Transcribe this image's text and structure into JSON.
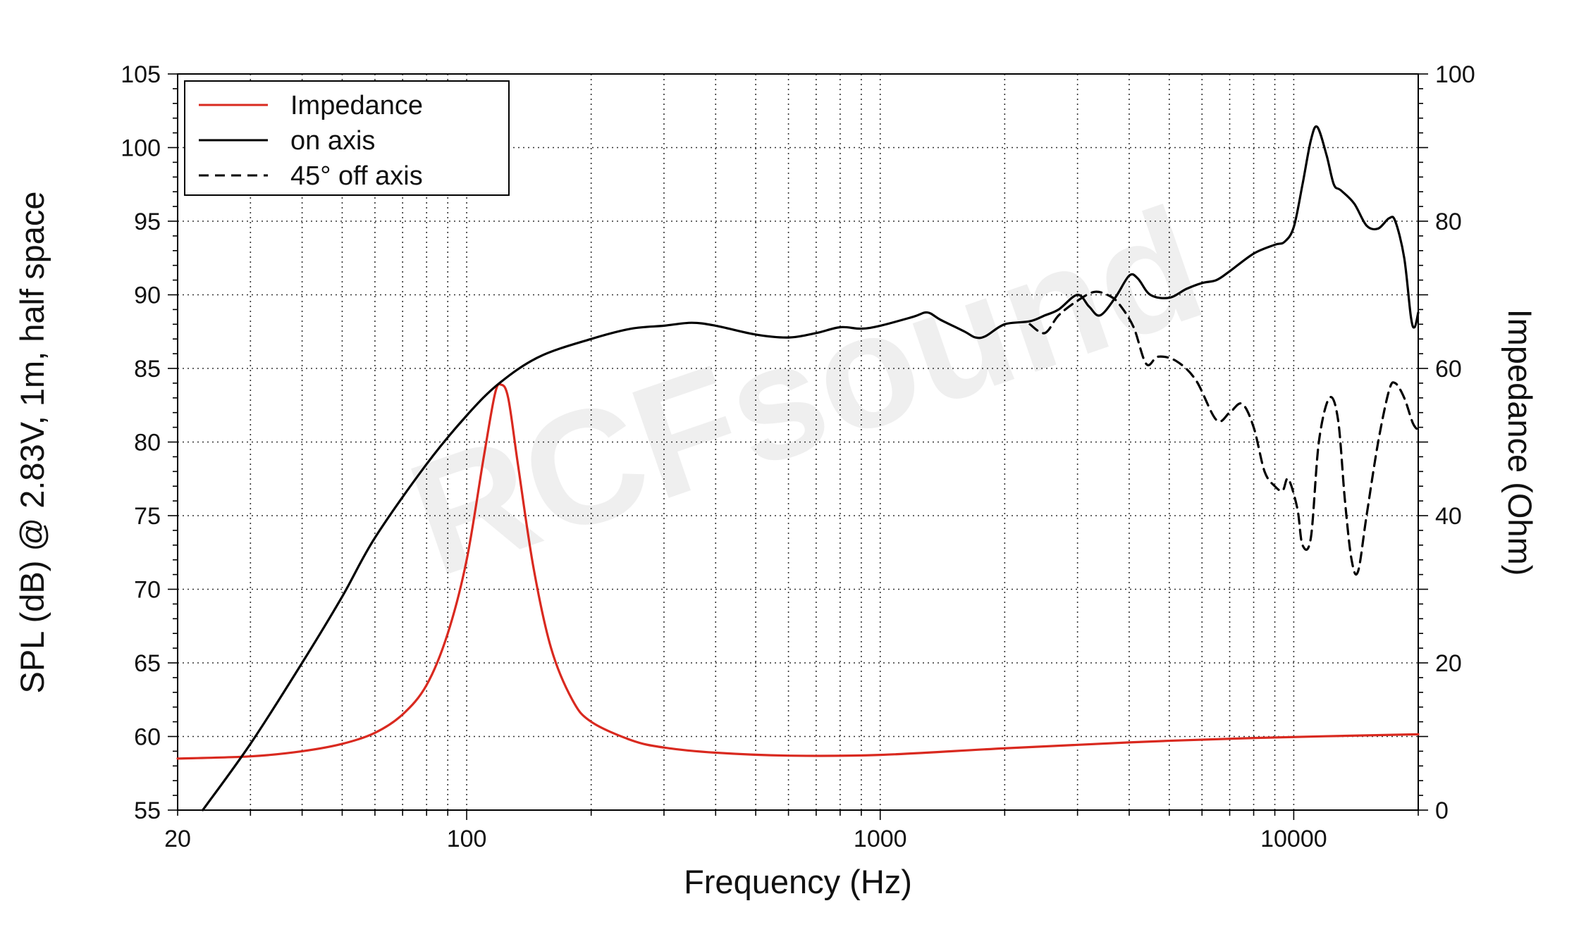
{
  "chart_data": {
    "type": "line",
    "xlabel": "Frequency (Hz)",
    "ylabel": "SPL (dB) @ 2.83V, 1m, half space",
    "y2label": "Impedance (Ohm)",
    "x_scale": "log",
    "xlim": [
      20,
      20000
    ],
    "ylim": [
      55,
      105
    ],
    "y2lim": [
      0,
      100
    ],
    "x_ticks": [
      20,
      100,
      1000,
      10000
    ],
    "x_tick_labels": [
      "20",
      "100",
      "1000",
      "10000"
    ],
    "y_ticks": [
      55,
      60,
      65,
      70,
      75,
      80,
      85,
      90,
      95,
      100,
      105
    ],
    "y_tick_labels": [
      "55",
      "60",
      "65",
      "70",
      "75",
      "80",
      "85",
      "90",
      "95",
      "100",
      "105"
    ],
    "y2_ticks": [
      0,
      20,
      40,
      60,
      80,
      100
    ],
    "y2_tick_labels": [
      "0",
      "20",
      "40",
      "60",
      "80",
      "100"
    ],
    "grid": true,
    "legend_position": "top-left",
    "watermark": "RCFsound",
    "series": [
      {
        "name": "Impedance",
        "color": "#d9291f",
        "dash": "solid",
        "axis": "right",
        "points": [
          [
            20,
            7
          ],
          [
            30,
            7.3
          ],
          [
            40,
            8
          ],
          [
            50,
            9
          ],
          [
            60,
            10.5
          ],
          [
            70,
            13
          ],
          [
            80,
            17
          ],
          [
            90,
            24
          ],
          [
            100,
            34
          ],
          [
            110,
            48
          ],
          [
            117,
            56.5
          ],
          [
            121,
            57.8
          ],
          [
            126,
            56
          ],
          [
            133,
            47
          ],
          [
            145,
            33
          ],
          [
            160,
            22
          ],
          [
            180,
            15
          ],
          [
            200,
            12
          ],
          [
            250,
            9.5
          ],
          [
            300,
            8.5
          ],
          [
            400,
            7.8
          ],
          [
            600,
            7.4
          ],
          [
            1000,
            7.5
          ],
          [
            2000,
            8.4
          ],
          [
            4000,
            9.2
          ],
          [
            8000,
            9.8
          ],
          [
            20000,
            10.3
          ]
        ]
      },
      {
        "name": "on axis",
        "color": "#000000",
        "dash": "solid",
        "axis": "left",
        "points": [
          [
            23,
            55
          ],
          [
            30,
            59.5
          ],
          [
            40,
            65
          ],
          [
            50,
            69.5
          ],
          [
            60,
            73.5
          ],
          [
            80,
            78.5
          ],
          [
            100,
            81.8
          ],
          [
            120,
            84
          ],
          [
            150,
            85.8
          ],
          [
            200,
            87
          ],
          [
            250,
            87.7
          ],
          [
            300,
            87.9
          ],
          [
            350,
            88.1
          ],
          [
            400,
            87.9
          ],
          [
            500,
            87.3
          ],
          [
            600,
            87.1
          ],
          [
            700,
            87.4
          ],
          [
            800,
            87.8
          ],
          [
            900,
            87.7
          ],
          [
            1000,
            87.9
          ],
          [
            1200,
            88.5
          ],
          [
            1300,
            88.8
          ],
          [
            1400,
            88.3
          ],
          [
            1600,
            87.5
          ],
          [
            1700,
            87.1
          ],
          [
            1800,
            87.2
          ],
          [
            2000,
            88
          ],
          [
            2300,
            88.2
          ],
          [
            2500,
            88.6
          ],
          [
            2700,
            89
          ],
          [
            3000,
            90
          ],
          [
            3200,
            89.2
          ],
          [
            3400,
            88.6
          ],
          [
            3700,
            89.8
          ],
          [
            4000,
            91.3
          ],
          [
            4200,
            91.1
          ],
          [
            4500,
            90
          ],
          [
            5000,
            89.8
          ],
          [
            5500,
            90.4
          ],
          [
            6000,
            90.8
          ],
          [
            6500,
            91
          ],
          [
            7000,
            91.6
          ],
          [
            8000,
            92.8
          ],
          [
            9000,
            93.4
          ],
          [
            9500,
            93.6
          ],
          [
            10000,
            94.6
          ],
          [
            10500,
            97.5
          ],
          [
            11000,
            100.5
          ],
          [
            11400,
            101.4
          ],
          [
            12000,
            99.5
          ],
          [
            12500,
            97.5
          ],
          [
            13000,
            97.1
          ],
          [
            14000,
            96.2
          ],
          [
            15000,
            94.7
          ],
          [
            16000,
            94.5
          ],
          [
            17000,
            95.2
          ],
          [
            17600,
            95
          ],
          [
            18500,
            92.5
          ],
          [
            19200,
            88.5
          ],
          [
            19600,
            87.8
          ],
          [
            20000,
            88.8
          ]
        ]
      },
      {
        "name": "45° off axis",
        "color": "#000000",
        "dash": "dashed",
        "axis": "left",
        "points": [
          [
            2300,
            88
          ],
          [
            2500,
            87.4
          ],
          [
            2700,
            88.6
          ],
          [
            3000,
            89.6
          ],
          [
            3300,
            90.2
          ],
          [
            3600,
            89.9
          ],
          [
            3800,
            89.3
          ],
          [
            4100,
            87.8
          ],
          [
            4400,
            85.3
          ],
          [
            4700,
            85.8
          ],
          [
            5200,
            85.5
          ],
          [
            5800,
            84.2
          ],
          [
            6500,
            81.5
          ],
          [
            7000,
            82
          ],
          [
            7500,
            82.6
          ],
          [
            8000,
            81
          ],
          [
            8500,
            78
          ],
          [
            9000,
            77
          ],
          [
            9400,
            76.7
          ],
          [
            9700,
            77.5
          ],
          [
            10200,
            75.5
          ],
          [
            10500,
            73
          ],
          [
            11000,
            73.5
          ],
          [
            11500,
            80
          ],
          [
            12200,
            83
          ],
          [
            12800,
            81.5
          ],
          [
            13300,
            76
          ],
          [
            13800,
            72
          ],
          [
            14300,
            71.2
          ],
          [
            15000,
            75
          ],
          [
            16000,
            80
          ],
          [
            17000,
            83.5
          ],
          [
            17600,
            84
          ],
          [
            18500,
            83
          ],
          [
            19400,
            81.3
          ],
          [
            20000,
            80.8
          ]
        ]
      }
    ]
  }
}
